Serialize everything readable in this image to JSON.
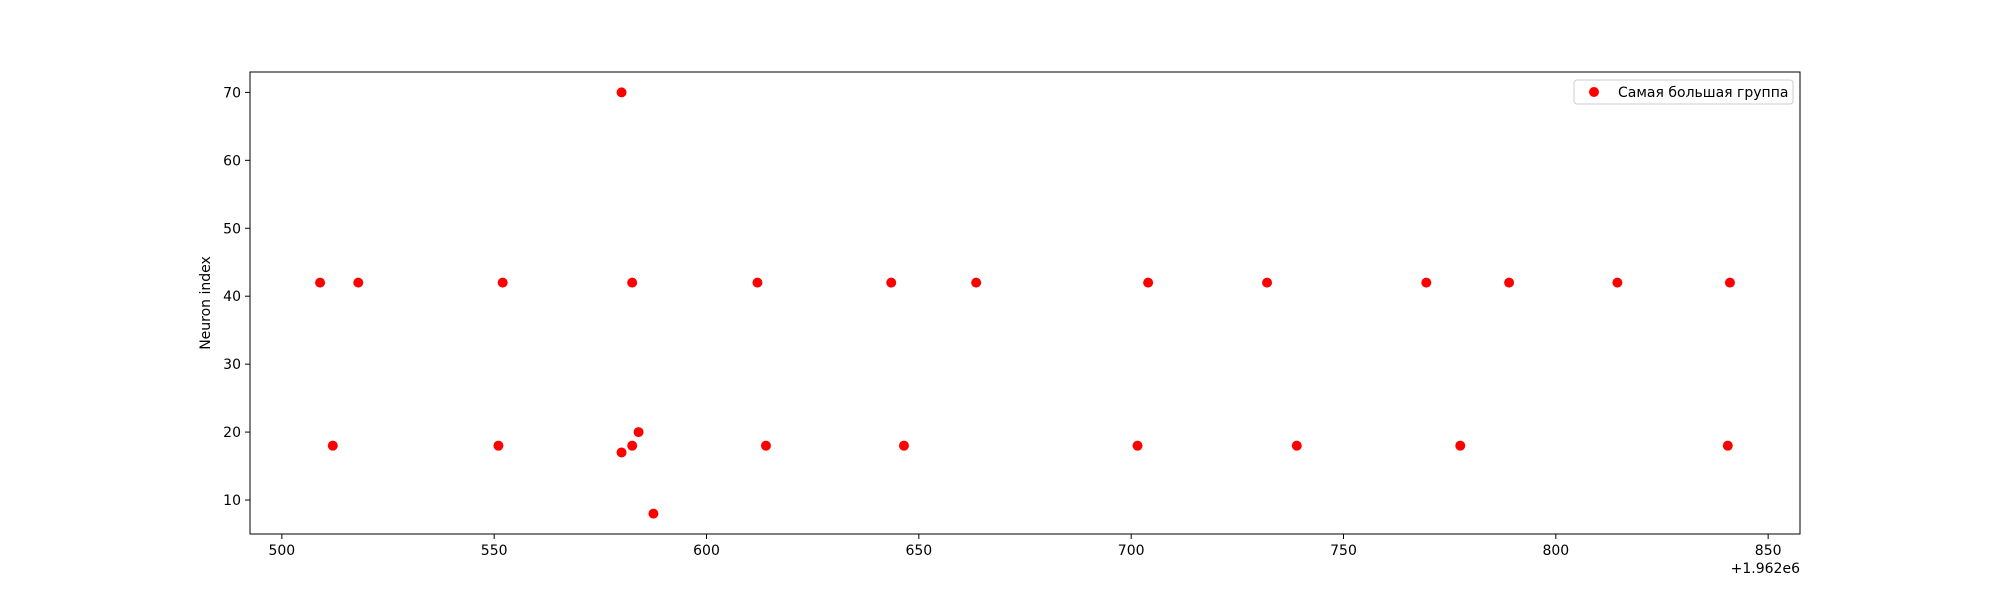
{
  "chart_data": {
    "type": "scatter",
    "title": "",
    "xlabel": "",
    "ylabel": "Neuron index",
    "x_offset_label": "+1.962e6",
    "xlim": [
      1962492.5,
      1962857.5
    ],
    "ylim": [
      5,
      73
    ],
    "xticks": [
      500,
      550,
      600,
      650,
      700,
      750,
      800,
      850
    ],
    "yticks": [
      10,
      20,
      30,
      40,
      50,
      60,
      70
    ],
    "grid": false,
    "legend_position": "top-right",
    "series": [
      {
        "name": "Самая большая группа",
        "color": "#ff0000",
        "x": [
          509,
          518,
          552,
          582.5,
          612,
          643.5,
          663.5,
          704,
          732,
          769.5,
          789,
          814.5,
          841,
          512,
          551,
          580,
          582.5,
          584,
          587.5,
          580,
          614,
          646.5,
          701.5,
          739,
          777.5,
          840.5
        ],
        "y": [
          42,
          42,
          42,
          42,
          42,
          42,
          42,
          42,
          42,
          42,
          42,
          42,
          42,
          18,
          18,
          17,
          18,
          20,
          8,
          70,
          18,
          18,
          18,
          18,
          18,
          18
        ]
      }
    ]
  }
}
